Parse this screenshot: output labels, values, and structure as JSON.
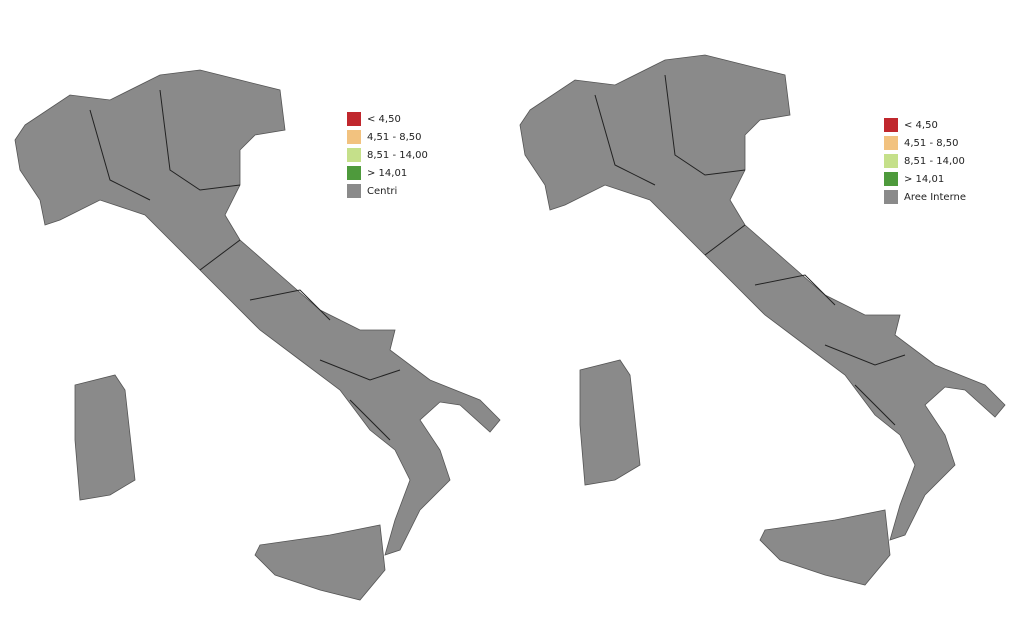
{
  "maps": [
    {
      "legend": [
        {
          "label": "< 4,50",
          "color": "#c0272d"
        },
        {
          "label": "4,51 - 8,50",
          "color": "#f2c27f"
        },
        {
          "label": "8,51 - 14,00",
          "color": "#c5e08a"
        },
        {
          "label": "> 14,01",
          "color": "#4e9a3c"
        },
        {
          "label": "Centri",
          "color": "#8a8a8a"
        }
      ]
    },
    {
      "legend": [
        {
          "label": "< 4,50",
          "color": "#c0272d"
        },
        {
          "label": "4,51 - 8,50",
          "color": "#f2c27f"
        },
        {
          "label": "8,51 - 14,00",
          "color": "#c5e08a"
        },
        {
          "label": "> 14,01",
          "color": "#4e9a3c"
        },
        {
          "label": "Aree Interne",
          "color": "#8a8a8a"
        }
      ]
    }
  ]
}
